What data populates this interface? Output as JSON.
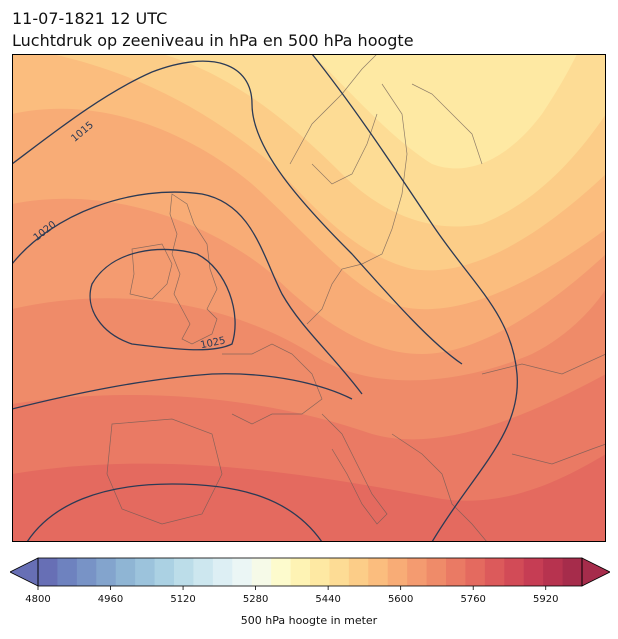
{
  "header": {
    "datetime": "11-07-1821 12 UTC",
    "subtitle": "Luchtdruk op zeeniveau in hPa en 500 hPa hoogte"
  },
  "map": {
    "region": "Europe",
    "fill_field": "500 hPa geopotential height",
    "contour_field": "sea level pressure",
    "isobar_labels": [
      "1015",
      "1020",
      "1025"
    ]
  },
  "colorbar": {
    "label": "500 hPa hoogte in meter",
    "min": 4800,
    "max": 6000,
    "step": 40,
    "ticks": [
      "4800",
      "4960",
      "5120",
      "5280",
      "5440",
      "5600",
      "5760",
      "5920"
    ],
    "colors": [
      "#676fb5",
      "#6e82bf",
      "#7893c6",
      "#83a4cd",
      "#8fb5d4",
      "#9cc3dc",
      "#abd1e3",
      "#bcdde9",
      "#cde7ef",
      "#ddeff4",
      "#ebf6f5",
      "#f6fae8",
      "#fdfbcd",
      "#fef3b4",
      "#fee9a3",
      "#fddc95",
      "#fccd88",
      "#fbbd7e",
      "#f8ac76",
      "#f49b70",
      "#ef8b69",
      "#ea7a64",
      "#e46a5f",
      "#dc5a5b",
      "#d24b57",
      "#c63d54",
      "#b7334f",
      "#a62c4b"
    ]
  }
}
